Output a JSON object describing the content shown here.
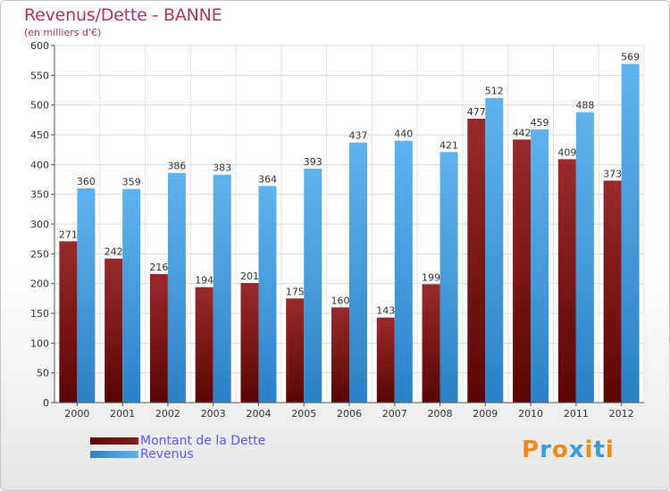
{
  "header": {
    "title": "Revenus/Dette - BANNE",
    "subtitle": "(en milliers d'€)"
  },
  "colors": {
    "debt": "#8b1c1c",
    "revenue": "#3b9de0",
    "title": "#b5336a",
    "legend_text": "#5a5aff"
  },
  "chart_data": {
    "type": "bar",
    "title": "Revenus/Dette - BANNE",
    "ylabel": "(en milliers d'€)",
    "xlabel": "",
    "categories": [
      "2000",
      "2001",
      "2002",
      "2003",
      "2004",
      "2005",
      "2006",
      "2007",
      "2008",
      "2009",
      "2010",
      "2011",
      "2012"
    ],
    "series": [
      {
        "name": "Montant de la Dette",
        "values": [
          271,
          242,
          216,
          194,
          201,
          175,
          160,
          143,
          199,
          477,
          442,
          409,
          373
        ]
      },
      {
        "name": "Revenus",
        "values": [
          360,
          359,
          386,
          383,
          364,
          393,
          437,
          440,
          421,
          512,
          459,
          488,
          569
        ]
      }
    ],
    "ylim": [
      0,
      600
    ],
    "yticks": [
      0,
      50,
      100,
      150,
      200,
      250,
      300,
      350,
      400,
      450,
      500,
      550,
      600
    ],
    "grid": true,
    "legend": "bottom-left",
    "data_labels": true
  },
  "legend": {
    "items": [
      {
        "label": "Montant de la Dette",
        "color": "#6b0f0f"
      },
      {
        "label": "Revenus",
        "color": "#3b9de0"
      }
    ]
  },
  "logo": {
    "text": "Proxiti",
    "letter_colors": [
      "#f08a1c",
      "#3b9de0",
      "#f08a1c",
      "#3b9de0",
      "#f08a1c",
      "#3b9de0",
      "#f08a1c"
    ]
  }
}
